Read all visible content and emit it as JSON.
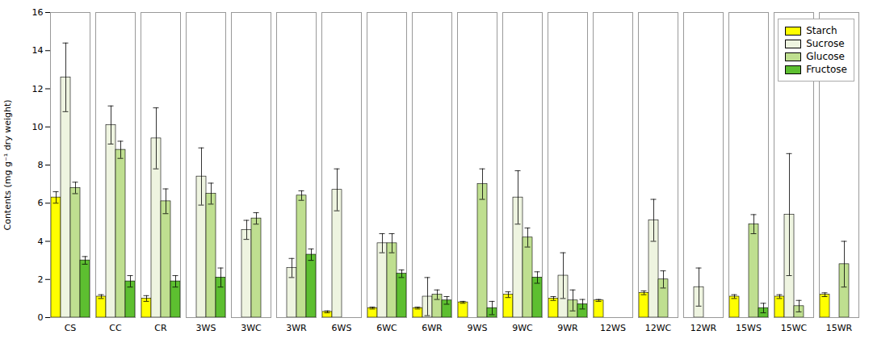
{
  "chart_data": {
    "type": "bar",
    "categories": [
      "CS",
      "CC",
      "CR",
      "3WS",
      "3WC",
      "3WR",
      "6WS",
      "6WC",
      "6WR",
      "9WS",
      "9WC",
      "9WR",
      "12WS",
      "12WC",
      "12WR",
      "15WS",
      "15WC",
      "15WR"
    ],
    "series": [
      {
        "name": "Starch",
        "color": "#FFFF00",
        "values": [
          6.3,
          1.1,
          1.0,
          0.0,
          0.0,
          0.0,
          0.3,
          0.5,
          0.5,
          0.8,
          1.2,
          1.0,
          0.9,
          1.3,
          0.0,
          1.1,
          1.1,
          1.2
        ],
        "errors": [
          0.3,
          0.1,
          0.15,
          0.0,
          0.0,
          0.0,
          0.05,
          0.05,
          0.05,
          0.05,
          0.15,
          0.1,
          0.05,
          0.1,
          0.0,
          0.1,
          0.1,
          0.1
        ]
      },
      {
        "name": "Sucrose",
        "color": "#EEF4E0",
        "values": [
          12.6,
          10.1,
          9.4,
          7.4,
          4.6,
          2.6,
          6.7,
          3.9,
          1.1,
          0.0,
          6.3,
          2.2,
          0.0,
          5.1,
          1.6,
          0.0,
          5.4,
          0.0
        ],
        "errors": [
          1.8,
          1.0,
          1.6,
          1.5,
          0.5,
          0.5,
          1.1,
          0.5,
          1.0,
          0.0,
          1.4,
          1.2,
          0.0,
          1.1,
          1.0,
          0.0,
          3.2,
          0.0
        ]
      },
      {
        "name": "Glucose",
        "color": "#BFDF90",
        "values": [
          6.8,
          8.8,
          6.1,
          6.5,
          5.2,
          6.4,
          0.0,
          3.9,
          1.2,
          7.0,
          4.2,
          0.9,
          0.0,
          2.0,
          0.0,
          4.9,
          0.6,
          2.8
        ],
        "errors": [
          0.3,
          0.45,
          0.65,
          0.55,
          0.3,
          0.25,
          0.0,
          0.5,
          0.25,
          0.8,
          0.5,
          0.55,
          0.0,
          0.45,
          0.0,
          0.5,
          0.3,
          1.2
        ]
      },
      {
        "name": "Fructose",
        "color": "#5DBF30",
        "values": [
          3.0,
          1.9,
          1.9,
          2.1,
          0.0,
          3.3,
          0.0,
          2.3,
          0.9,
          0.5,
          2.1,
          0.7,
          0.0,
          0.0,
          0.0,
          0.5,
          0.0,
          0.0
        ],
        "errors": [
          0.2,
          0.3,
          0.3,
          0.5,
          0.0,
          0.3,
          0.0,
          0.2,
          0.2,
          0.35,
          0.3,
          0.25,
          0.0,
          0.0,
          0.0,
          0.25,
          0.0,
          0.0
        ]
      }
    ],
    "ylabel": "Contents (mg g⁻¹ dry weight)",
    "ylim": [
      0,
      16
    ],
    "yticks": [
      0,
      2,
      4,
      6,
      8,
      10,
      12,
      14,
      16
    ],
    "grid": false,
    "legend": "upper right"
  }
}
